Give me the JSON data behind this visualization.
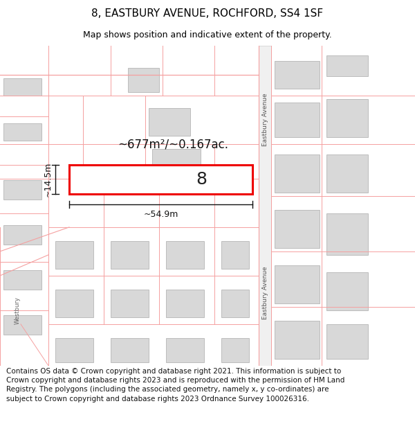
{
  "title": "8, EASTBURY AVENUE, ROCHFORD, SS4 1SF",
  "subtitle": "Map shows position and indicative extent of the property.",
  "footer": "Contains OS data © Crown copyright and database right 2021. This information is subject to Crown copyright and database rights 2023 and is reproduced with the permission of HM Land Registry. The polygons (including the associated geometry, namely x, y co-ordinates) are subject to Crown copyright and database rights 2023 Ordnance Survey 100026316.",
  "map_bg": "#ffffff",
  "road_line_color": "#f5a0a0",
  "building_fill": "#d8d8d8",
  "building_stroke": "#aaaaaa",
  "highlight_fill": "#ffffff",
  "highlight_stroke": "#ee0000",
  "area_text": "~677m²/~0.167ac.",
  "width_text": "~54.9m",
  "height_text": "~14.5m",
  "label_text": "8",
  "road_label": "Eastbury Avenue",
  "road_label2": "Eastbury Avenue",
  "west_road_label": "Westbury",
  "title_fontsize": 11,
  "subtitle_fontsize": 9,
  "footer_fontsize": 7.5,
  "background_color": "#ffffff",
  "annotation_color": "#111111",
  "road_strip_color": "#f0f0f0",
  "road_strip_stroke": "#cccccc"
}
